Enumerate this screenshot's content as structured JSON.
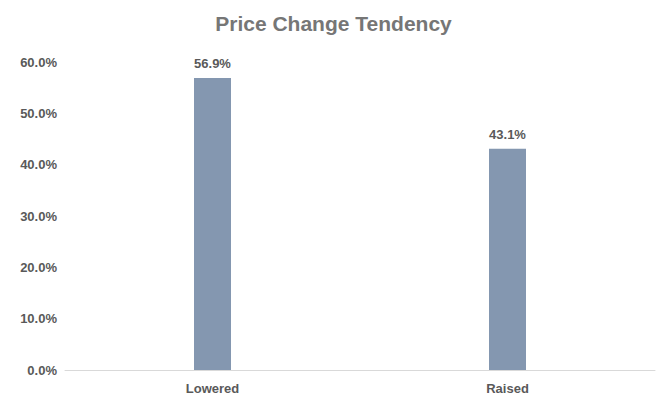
{
  "chart_data": {
    "type": "bar",
    "title": "Price Change Tendency",
    "categories": [
      "Lowered",
      "Raised"
    ],
    "values": [
      56.9,
      43.1
    ],
    "value_labels": [
      "56.9%",
      "43.1%"
    ],
    "color": "#8497b0",
    "ylim": [
      0,
      60
    ],
    "yticks": [
      {
        "value": 0,
        "label": "0.0%"
      },
      {
        "value": 10,
        "label": "10.0%"
      },
      {
        "value": 20,
        "label": "20.0%"
      },
      {
        "value": 30,
        "label": "30.0%"
      },
      {
        "value": 40,
        "label": "40.0%"
      },
      {
        "value": 50,
        "label": "50.0%"
      },
      {
        "value": 60,
        "label": "60.0%"
      }
    ],
    "grid": false,
    "data_labels": true
  }
}
